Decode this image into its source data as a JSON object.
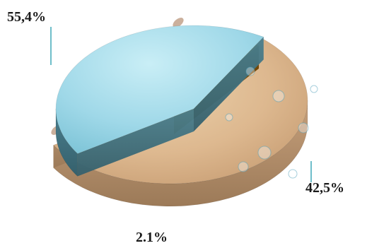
{
  "chart_data": {
    "type": "pie",
    "style": "3d-exploded",
    "categories": [
      "",
      "",
      ""
    ],
    "values": [
      55.4,
      42.5,
      2.1
    ],
    "data_labels": [
      "55,4%",
      "42,5%",
      "2.1%"
    ],
    "title": "",
    "legend": "none",
    "slice_colors": [
      "#d9b48c",
      "#9fd8e8",
      "#c9870a"
    ],
    "slice_textures": [
      "sand-with-fish-fossils",
      "water-droplets",
      "plain"
    ],
    "label_leader_color": "#3fa8b8"
  }
}
